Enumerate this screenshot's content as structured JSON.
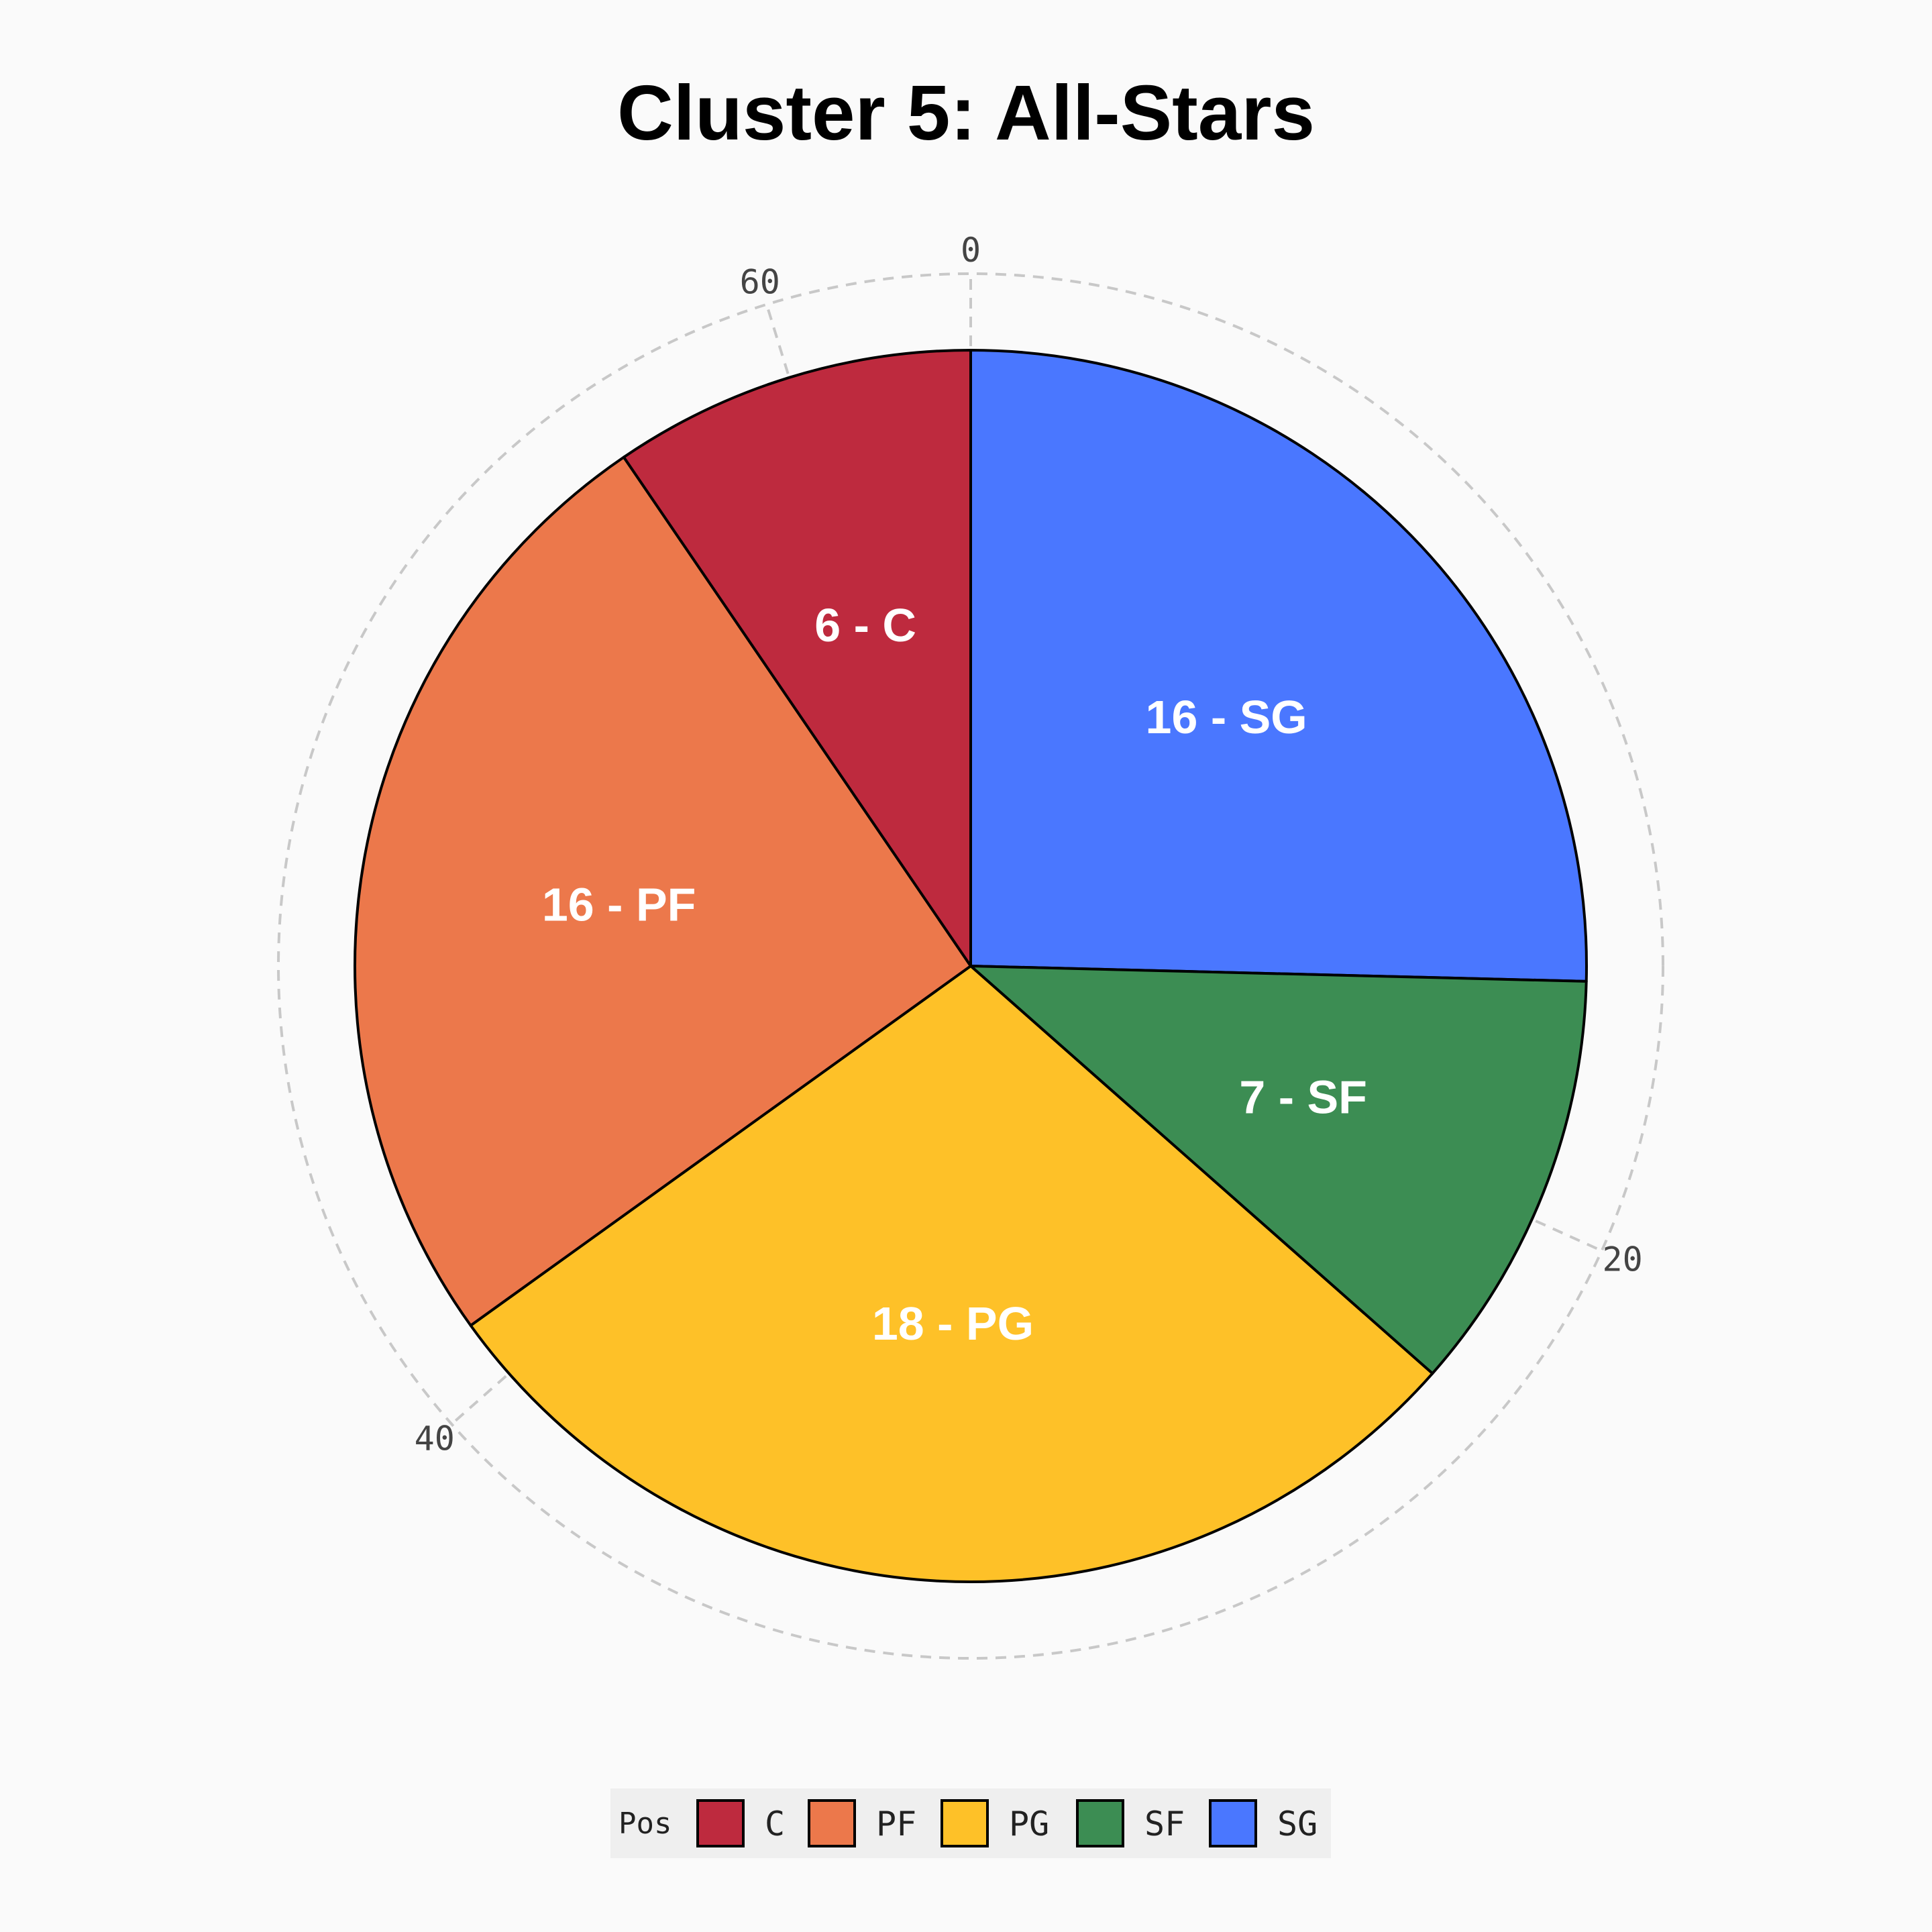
{
  "chart_data": {
    "type": "pie",
    "title": "Cluster 5: All-Stars",
    "categories": [
      "C",
      "PF",
      "PG",
      "SF",
      "SG"
    ],
    "values": [
      6,
      16,
      18,
      7,
      16
    ],
    "slice_labels": [
      "6 - C",
      "16 - PF",
      "18 - PG",
      "7 - SF",
      "16 - SG"
    ],
    "colors": {
      "C": "#be2a3e",
      "PF": "#ec784b",
      "PG": "#fec128",
      "SF": "#3c8d53",
      "SG": "#4a77ff"
    },
    "slice_order_clockwise_from_top": [
      "SG",
      "SF",
      "PG",
      "PF",
      "C"
    ],
    "angular_axis": {
      "ticks": [
        "0",
        "20",
        "40",
        "60"
      ],
      "range": [
        0,
        63
      ],
      "direction": "clockwise",
      "gridline": "dashed"
    },
    "legend": {
      "title": "Pos",
      "position": "bottom-center",
      "items": [
        "C",
        "PF",
        "PG",
        "SF",
        "SG"
      ]
    }
  }
}
